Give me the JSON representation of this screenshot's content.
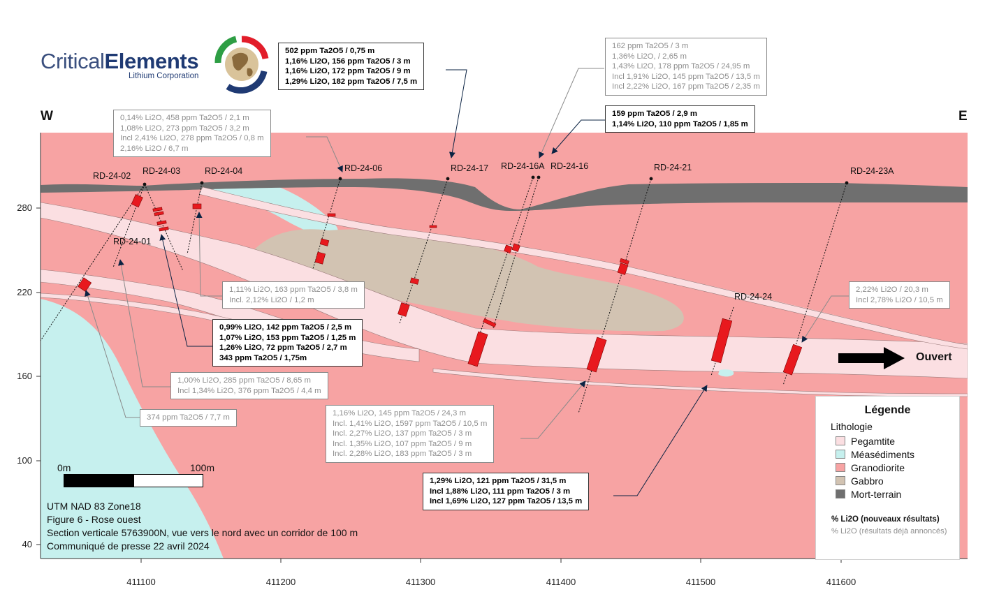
{
  "colors": {
    "pegmatite": "#fbdfe2",
    "metasediments": "#c6f0ee",
    "granodiorite": "#f7a3a3",
    "gabbro": "#d2c3b2",
    "overburden": "#6f6f6f",
    "intercept": "#e8191e",
    "arrow": "#0b2343"
  },
  "logo": {
    "name_light": "Critical",
    "name_bold": "Elements",
    "subtitle": "Lithium Corporation"
  },
  "compass": {
    "west": "W",
    "east": "E"
  },
  "axes": {
    "y_ticks": [
      "280",
      "220",
      "160",
      "100",
      "40"
    ],
    "x_ticks": [
      "411100",
      "411200",
      "411300",
      "411400",
      "411500",
      "411600"
    ]
  },
  "drill_holes": [
    {
      "id": "RD-24-02"
    },
    {
      "id": "RD-24-03"
    },
    {
      "id": "RD-24-04"
    },
    {
      "id": "RD-24-06"
    },
    {
      "id": "RD-24-17"
    },
    {
      "id": "RD-24-16A"
    },
    {
      "id": "RD-24-16"
    },
    {
      "id": "RD-24-21"
    },
    {
      "id": "RD-24-23A"
    },
    {
      "id": "RD-24-01"
    },
    {
      "id": "RD-24-24"
    }
  ],
  "annotations": [
    {
      "style": "new",
      "lines": [
        "502 ppm Ta2O5 / 0,75 m",
        "1,16% Li2O, 156 ppm Ta2O5 / 3 m",
        "1,16% Li2O, 172 ppm Ta2O5 / 9 m",
        "1,29% Li2O, 182 ppm Ta2O5 / 7,5 m"
      ]
    },
    {
      "style": "old",
      "lines": [
        "162 ppm Ta2O5 / 3 m",
        "1,36% Li2O, / 2,65 m",
        "1,43% Li2O, 178 ppm Ta2O5 / 24,95 m",
        "Incl 1,91% Li2O, 145 ppm Ta2O5 / 13,5 m",
        "Incl 2,22% Li2O, 167 ppm Ta2O5 / 2,35 m"
      ]
    },
    {
      "style": "new",
      "lines": [
        "159 ppm Ta2O5 / 2,9 m",
        "1,14% Li2O, 110 ppm Ta2O5 / 1,85 m"
      ]
    },
    {
      "style": "old",
      "lines": [
        "0,14% Li2O, 458 ppm Ta2O5 / 2,1 m",
        "1,08% Li2O, 273 ppm Ta2O5 / 3,2 m",
        "Incl 2,41% Li2O, 278 ppm Ta2O5 / 0,8 m",
        "2,16% Li2O / 6,7 m"
      ]
    },
    {
      "style": "old",
      "lines": [
        "1,11% Li2O, 163 ppm Ta2O5 / 3,8 m",
        "Incl. 2,12% Li2O / 1,2 m"
      ]
    },
    {
      "style": "new",
      "lines": [
        "0,99% Li2O, 142 ppm Ta2O5 / 2,5 m",
        "1,07% Li2O, 153 ppm Ta2O5 / 1,25 m",
        "1,26% Li2O, 72 ppm Ta2O5 / 2,7 m",
        "343 ppm Ta2O5 / 1,75m"
      ]
    },
    {
      "style": "old",
      "lines": [
        "2,22% Li2O / 20,3 m",
        "Incl 2,78% Li2O / 10,5 m"
      ]
    },
    {
      "style": "old",
      "lines": [
        "1,00% Li2O, 285 ppm Ta2O5 / 8,65 m",
        "Incl 1,34% Li2O, 376 ppm Ta2O5 / 4,4 m"
      ]
    },
    {
      "style": "old",
      "lines": [
        "374 ppm Ta2O5 / 7,7 m"
      ]
    },
    {
      "style": "old",
      "lines": [
        "1,16% Li2O, 145 ppm Ta2O5 / 24,3 m",
        "Incl. 1,41% Li2O, 1597 ppm Ta2O5 / 10,5 m",
        "Incl. 2,27% Li2O, 137 ppm Ta2O5 / 3 m",
        "Incl. 1,35% Li2O, 107 ppm Ta2O5 / 9 m",
        "Incl. 2,28% Li2O, 183 ppm Ta2O5 / 3 m"
      ]
    },
    {
      "style": "new",
      "lines": [
        "1,29% Li2O, 121 ppm Ta2O5 / 31,5 m",
        "Incl 1,88% Li2O, 111 ppm Ta2O5 / 3 m",
        "Incl 1,69% Li2O, 127 ppm Ta2O5 / 13,5 m"
      ]
    }
  ],
  "open_label": "Ouvert",
  "legend": {
    "title": "Légende",
    "subtitle": "Lithologie",
    "items": [
      {
        "label": "Pegamtite"
      },
      {
        "label": "Méasédiments"
      },
      {
        "label": "Granodiorite"
      },
      {
        "label": "Gabbro"
      },
      {
        "label": "Mort-terrain"
      }
    ],
    "note_new": "% Li2O (nouveaux résultats)",
    "note_old": "% Li2O (résultats déjà annoncés)"
  },
  "scale_bar": {
    "start_label": "0m",
    "end_label": "100m"
  },
  "figure_notes": [
    "UTM NAD 83 Zone18",
    "Figure 6 - Rose ouest",
    "Section verticale 5763900N, vue vers le nord avec un corridor de 100 m",
    "Communiqué de presse  22 avril 2024"
  ]
}
